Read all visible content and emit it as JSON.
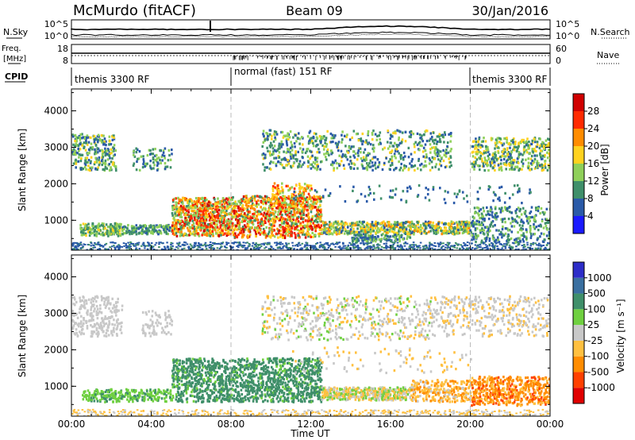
{
  "header": {
    "radar": "McMurdo (fitACF)",
    "beam": "Beam 09",
    "date": "30/Jan/2016"
  },
  "noise_panel": {
    "left_label": "N.Sky",
    "right_label": "N.Search",
    "left_ticks": [
      "10^5",
      "10^0"
    ],
    "right_ticks": [
      "10^5",
      "10^0"
    ]
  },
  "freq_panel": {
    "left_label_line1": "Freq.",
    "left_label_line2": "[MHz]",
    "right_label": "Nave",
    "left_ticks": [
      "18",
      "8"
    ],
    "right_ticks": [
      "60",
      "0"
    ]
  },
  "cpid_panel": {
    "label": "CPID",
    "segments": [
      {
        "text": "themis 3300 RF",
        "start_hour": 0,
        "end_hour": 8
      },
      {
        "text": "normal (fast) 151 RF",
        "start_hour": 8,
        "end_hour": 20
      },
      {
        "text": "themis 3300 RF",
        "start_hour": 20,
        "end_hour": 24
      }
    ]
  },
  "power_colorbar": {
    "label": "Power [dB]",
    "ticks": [
      "4",
      "8",
      "12",
      "16",
      "20",
      "24",
      "28"
    ],
    "colors": [
      "#1a1aff",
      "#2a5aa8",
      "#3f8f6a",
      "#8fd05a",
      "#ffd21f",
      "#ff8c00",
      "#ff2a00",
      "#d00000"
    ]
  },
  "velocity_colorbar": {
    "label": "Velocity [m s⁻¹]",
    "ticks": [
      "1000",
      "500",
      "100",
      "25",
      "-25",
      "-100",
      "-500",
      "-1000"
    ],
    "colors": [
      "#2d2dc8",
      "#3a6fa0",
      "#3f8f6a",
      "#6fd040",
      "#c8c8c8",
      "#ffc040",
      "#ff8c00",
      "#ff4000",
      "#e00000"
    ]
  },
  "chart_data": [
    {
      "type": "heatmap",
      "title": "",
      "quantity": "Power",
      "ylabel": "Slant Range [km]",
      "ylim": [
        180,
        4600
      ],
      "xlim": [
        0,
        24
      ],
      "y_ticks": [
        "1000",
        "2000",
        "3000",
        "4000"
      ],
      "zlabel": "Power [dB]",
      "zrange": [
        0,
        30
      ],
      "regions": [
        {
          "name": "near-range",
          "t": [
            0,
            24
          ],
          "r": [
            200,
            420
          ],
          "z": 6
        },
        {
          "name": "E-region band",
          "t": [
            0.5,
            8
          ],
          "r": [
            600,
            900
          ],
          "z": 14
        },
        {
          "name": "strong F echoes",
          "t": [
            5,
            13
          ],
          "r": [
            600,
            1700
          ],
          "z": 24
        },
        {
          "name": "evening band",
          "t": [
            13,
            20
          ],
          "r": [
            650,
            950
          ],
          "z": 16
        },
        {
          "name": "far range",
          "t": [
            0,
            24
          ],
          "r": [
            2400,
            3500
          ],
          "z": 10
        }
      ]
    },
    {
      "type": "heatmap",
      "title": "",
      "quantity": "Velocity",
      "ylabel": "Slant Range [km]",
      "xlabel": "Time UT",
      "ylim": [
        180,
        4600
      ],
      "xlim": [
        0,
        24
      ],
      "y_ticks": [
        "1000",
        "2000",
        "3000",
        "4000"
      ],
      "x_ticks": [
        "00:00",
        "04:00",
        "08:00",
        "12:00",
        "16:00",
        "20:00",
        "00:00"
      ],
      "zlabel": "Velocity [m s^-1]",
      "regions": [
        {
          "name": "positive flow",
          "t": [
            5,
            12
          ],
          "r": [
            600,
            1800
          ],
          "z": 300
        },
        {
          "name": "E-region",
          "t": [
            0.5,
            5
          ],
          "r": [
            600,
            900
          ],
          "z": 150
        },
        {
          "name": "ground scatter",
          "t": [
            0,
            24
          ],
          "r": [
            2400,
            3500
          ],
          "z": 0
        },
        {
          "name": "negative flow",
          "t": [
            18,
            24
          ],
          "r": [
            400,
            1300
          ],
          "z": -400
        }
      ]
    }
  ]
}
